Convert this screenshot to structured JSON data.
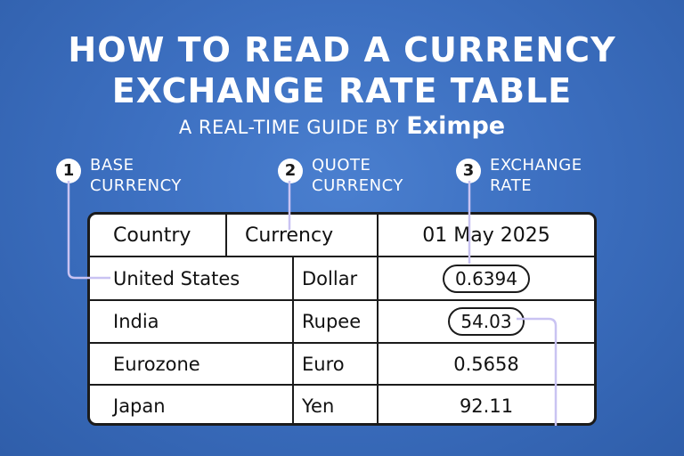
{
  "title_line1": "HOW TO READ A CURRENCY",
  "title_line2": "EXCHANGE RATE TABLE",
  "subtitle": "A REAL-TIME GUIDE BY",
  "brand": "Eximpe",
  "callouts": [
    {
      "number": "1",
      "label": "BASE\nCURRENCY"
    },
    {
      "number": "2",
      "label": "QUOTE\nCURRENCY"
    },
    {
      "number": "3",
      "label": "EXCHANGE\nRATE"
    }
  ],
  "table": {
    "headers": [
      "Country",
      "Currency",
      "01 May 2025"
    ],
    "rows": [
      {
        "country": "United States",
        "currency": "Dollar",
        "rate": "0.6394"
      },
      {
        "country": "India",
        "currency": "Rupee",
        "rate": "54.03"
      },
      {
        "country": "Eurozone",
        "currency": "Euro",
        "rate": "0.5658"
      },
      {
        "country": "Japan",
        "currency": "Yen",
        "rate": "92.11"
      }
    ]
  },
  "colors": {
    "background": "#3c6fc0",
    "connector": "#c9c3f2"
  }
}
